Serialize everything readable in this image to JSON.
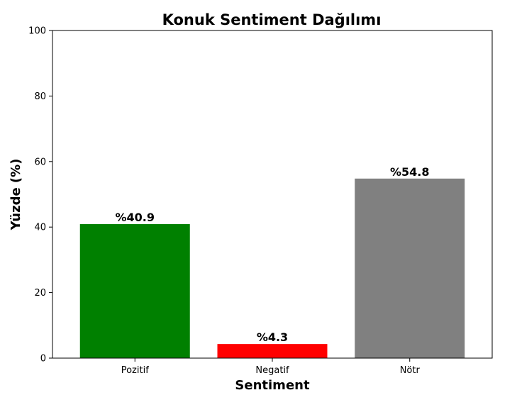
{
  "chart_data": {
    "type": "bar",
    "title": "Konuk Sentiment Dağılımı",
    "xlabel": "Sentiment",
    "ylabel": "Yüzde (%)",
    "categories": [
      "Pozitif",
      "Negatif",
      "Nötr"
    ],
    "values": [
      40.9,
      4.3,
      54.8
    ],
    "value_labels": [
      "%40.9",
      "%4.3",
      "%54.8"
    ],
    "colors": [
      "#008000",
      "#ff0000",
      "#808080"
    ],
    "ylim": [
      0,
      100
    ],
    "yticks": [
      0,
      20,
      40,
      60,
      80,
      100
    ],
    "grid": false,
    "legend": false
  }
}
